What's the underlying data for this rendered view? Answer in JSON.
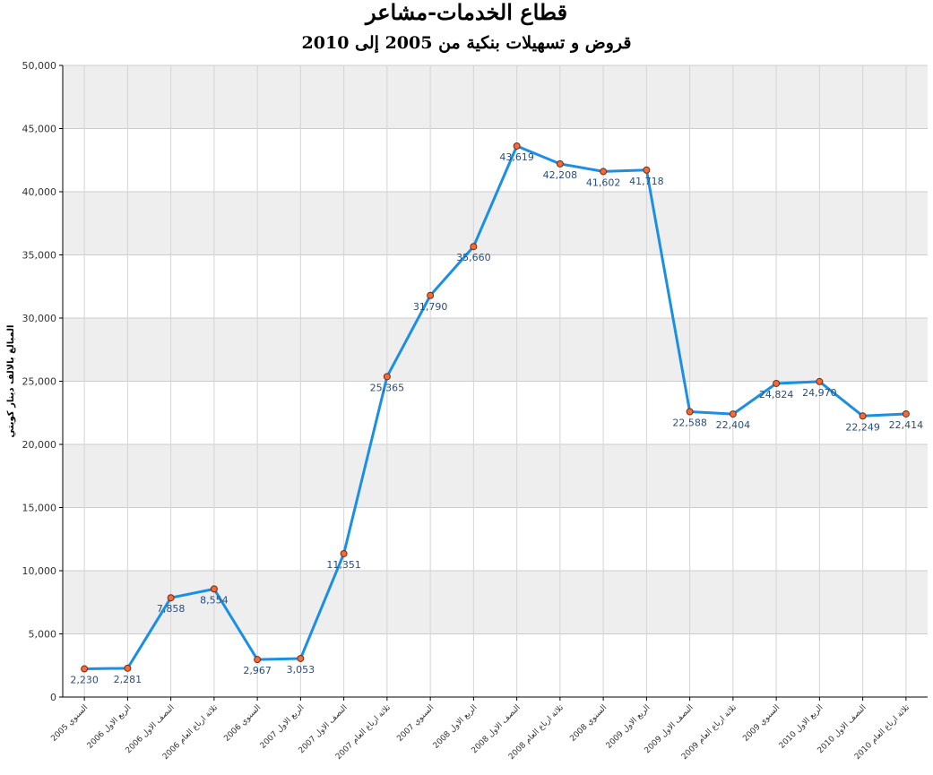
{
  "chart_data": {
    "type": "line",
    "title": "قطاع الخدمات-مشاعر",
    "subtitle": "قروض و تسهيلات بنكية من 2005 إلى 2010",
    "ylabel": "المبالغ بالالف دينار كويتي",
    "xlabel": "",
    "ylim": [
      0,
      50000
    ],
    "yticks": [
      "0",
      "5,000",
      "10,000",
      "15,000",
      "20,000",
      "25,000",
      "30,000",
      "35,000",
      "40,000",
      "45,000",
      "50,000"
    ],
    "grid": true,
    "categories": [
      "السنوي 2005",
      "الربع الاول 2006",
      "النصف الاول 2006",
      "ثلاثة ارباع العام 2006",
      "السنوي 2006",
      "الربع الاول 2007",
      "النصف الاول 2007",
      "ثلاثة ارباع العام 2007",
      "السنوي 2007",
      "الربع الاول 2008",
      "النصف الاول 2008",
      "ثلاثة ارباع العام 2008",
      "السنوي 2008",
      "الربع الاول 2009",
      "النصف الاول 2009",
      "ثلاثة ارباع العام 2009",
      "السنوي 2009",
      "الربع الاول 2010",
      "النصف الاول 2010",
      "ثلاثة ارباع العام 2010"
    ],
    "values": [
      2230,
      2281,
      7858,
      8554,
      2967,
      3053,
      11351,
      25365,
      31790,
      35660,
      43619,
      42208,
      41602,
      41718,
      22588,
      22404,
      24824,
      24970,
      22249,
      22414
    ],
    "value_labels": [
      "2,230",
      "2,281",
      "7,858",
      "8,554",
      "2,967",
      "3,053",
      "11,351",
      "25,365",
      "31,790",
      "35,660",
      "43,619",
      "42,208",
      "41,602",
      "41,718",
      "22,588",
      "22,404",
      "24,824",
      "24,970",
      "22,249",
      "22,414"
    ],
    "line_color": "#1a8fe3",
    "marker_color": "#f26a3a",
    "band_color": "#eeeeee"
  }
}
